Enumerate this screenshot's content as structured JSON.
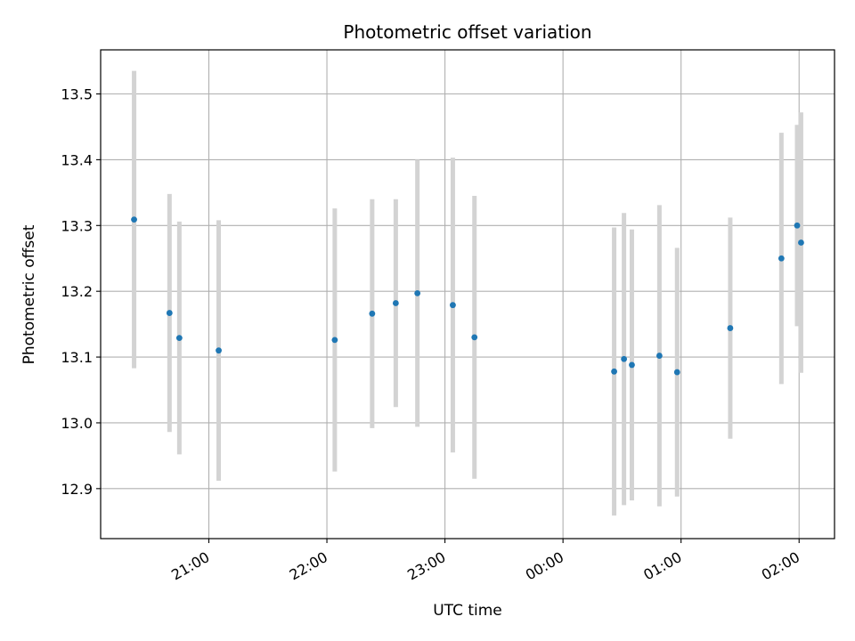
{
  "chart_data": {
    "type": "scatter",
    "title": "Photometric offset variation",
    "xlabel": "UTC time",
    "ylabel": "Photometric offset",
    "x_axis": "time",
    "x_ticks": [
      "21:00",
      "22:00",
      "23:00",
      "00:00",
      "01:00",
      "02:00"
    ],
    "x_tick_times": [
      "2000-01-01T21:00",
      "2000-01-01T22:00",
      "2000-01-01T23:00",
      "2000-01-02T00:00",
      "2000-01-02T01:00",
      "2000-01-02T02:00"
    ],
    "xlim": [
      "2000-01-01T20:05",
      "2000-01-02T02:18"
    ],
    "ylim": [
      12.824,
      13.567
    ],
    "y_ticks": [
      12.9,
      13.0,
      13.1,
      13.2,
      13.3,
      13.4,
      13.5
    ],
    "y_tick_labels": [
      "12.9",
      "13.0",
      "13.1",
      "13.2",
      "13.3",
      "13.4",
      "13.5"
    ],
    "grid": true,
    "marker_color": "#1f77b4",
    "errorbar_color": "#d3d3d3",
    "points": [
      {
        "x": "2000-01-01T20:22",
        "y": 13.309,
        "err": 0.226
      },
      {
        "x": "2000-01-01T20:40",
        "y": 13.167,
        "err": 0.181
      },
      {
        "x": "2000-01-01T20:45",
        "y": 13.129,
        "err": 0.177
      },
      {
        "x": "2000-01-01T21:05",
        "y": 13.11,
        "err": 0.198
      },
      {
        "x": "2000-01-01T22:04",
        "y": 13.126,
        "err": 0.2
      },
      {
        "x": "2000-01-01T22:23",
        "y": 13.166,
        "err": 0.174
      },
      {
        "x": "2000-01-01T22:35",
        "y": 13.182,
        "err": 0.158
      },
      {
        "x": "2000-01-01T22:46",
        "y": 13.197,
        "err": 0.203
      },
      {
        "x": "2000-01-01T23:04",
        "y": 13.179,
        "err": 0.224
      },
      {
        "x": "2000-01-01T23:15",
        "y": 13.13,
        "err": 0.215
      },
      {
        "x": "2000-01-02T00:26",
        "y": 13.078,
        "err": 0.219
      },
      {
        "x": "2000-01-02T00:31",
        "y": 13.097,
        "err": 0.222
      },
      {
        "x": "2000-01-02T00:35",
        "y": 13.088,
        "err": 0.206
      },
      {
        "x": "2000-01-02T00:49",
        "y": 13.102,
        "err": 0.229
      },
      {
        "x": "2000-01-02T00:58",
        "y": 13.077,
        "err": 0.189
      },
      {
        "x": "2000-01-02T01:25",
        "y": 13.144,
        "err": 0.168
      },
      {
        "x": "2000-01-02T01:51",
        "y": 13.25,
        "err": 0.191
      },
      {
        "x": "2000-01-02T01:59",
        "y": 13.3,
        "err": 0.153
      },
      {
        "x": "2000-01-02T02:01",
        "y": 13.274,
        "err": 0.198
      }
    ]
  }
}
